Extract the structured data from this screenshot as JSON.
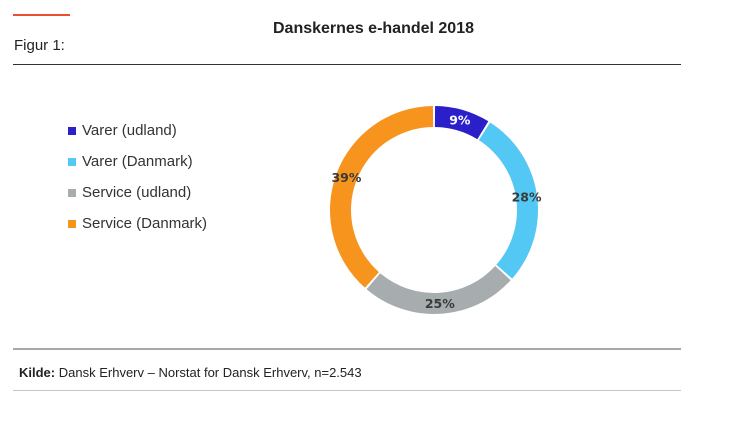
{
  "figure_label": "Figur 1:",
  "source": {
    "label": "Kilde:",
    "text": "Dansk Erhverv – Norstat for Dansk Erhverv, n=2.543"
  },
  "chart_data": {
    "type": "pie",
    "variant": "donut",
    "title": "Danskernes e-handel 2018",
    "legend_position": "left",
    "slices": [
      {
        "label": "Varer (udland)",
        "value": 9,
        "display": "9%",
        "color": "#2a1fc9",
        "label_color": "#ffffff"
      },
      {
        "label": "Varer (Danmark)",
        "value": 28,
        "display": "28%",
        "color": "#54c8f4",
        "label_color": "#3a3a3a"
      },
      {
        "label": "Service (udland)",
        "value": 25,
        "display": "25%",
        "color": "#a7acae",
        "label_color": "#3a3a3a"
      },
      {
        "label": "Service (Danmark)",
        "value": 39,
        "display": "39%",
        "color": "#f7941d",
        "label_color": "#3a3a3a"
      }
    ]
  }
}
